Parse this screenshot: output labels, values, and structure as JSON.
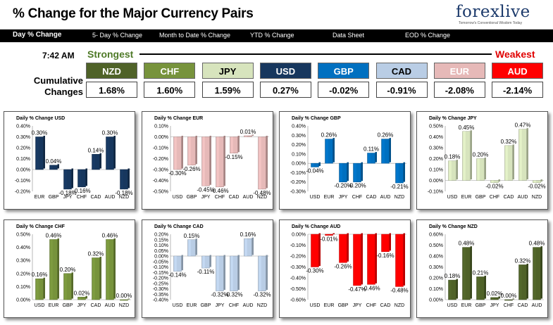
{
  "header": {
    "title": "% Change for the Major Currency Pairs",
    "logo": "forexlive",
    "logo_tagline": "Tomorrow's Conventional Wisdom Today"
  },
  "nav": {
    "items": [
      {
        "label": "Day % Change",
        "active": true
      },
      {
        "label": "5- Day % Change",
        "active": false
      },
      {
        "label": "Month to Date % Change",
        "active": false
      },
      {
        "label": "YTD % Change",
        "active": false
      },
      {
        "label": "Data Sheet",
        "active": false
      },
      {
        "label": "EOD % Change",
        "active": false
      }
    ]
  },
  "summary": {
    "time": "7:42 AM",
    "strongest": "Strongest",
    "weakest": "Weakest",
    "cumulative": "Cumulative Changes",
    "currencies": [
      {
        "name": "NZD",
        "value": "1.68%",
        "color": "#4f6228",
        "text_color": "#ffffff"
      },
      {
        "name": "CHF",
        "value": "1.60%",
        "color": "#77933c",
        "text_color": "#ffffff"
      },
      {
        "name": "JPY",
        "value": "1.59%",
        "color": "#d7e4bd",
        "text_color": "#000000"
      },
      {
        "name": "USD",
        "value": "0.27%",
        "color": "#17375e",
        "text_color": "#ffffff"
      },
      {
        "name": "GBP",
        "value": "-0.02%",
        "color": "#0070c0",
        "text_color": "#ffffff"
      },
      {
        "name": "CAD",
        "value": "-0.91%",
        "color": "#b9cde5",
        "text_color": "#000000"
      },
      {
        "name": "EUR",
        "value": "-2.08%",
        "color": "#e6b9b8",
        "text_color": "#ffffff"
      },
      {
        "name": "AUD",
        "value": "-2.14%",
        "color": "#ff0000",
        "text_color": "#ffffff"
      }
    ]
  },
  "chart_data": [
    {
      "type": "bar",
      "title": "Daily % Change USD",
      "color": "#17375e",
      "categories": [
        "EUR",
        "GBP",
        "JPY",
        "CHF",
        "CAD",
        "AUD",
        "NZD"
      ],
      "values": [
        0.3,
        0.04,
        -0.18,
        -0.16,
        0.14,
        0.3,
        -0.18
      ],
      "labels": [
        "0.30%",
        "0.04%",
        "-0.18%",
        "-0.16%",
        "0.14%",
        "0.30%",
        "-0.18%"
      ],
      "ylim": [
        -0.2,
        0.4
      ],
      "yticks": [
        "0.40%",
        "0.30%",
        "0.20%",
        "0.10%",
        "0.00%",
        "-0.10%",
        "-0.20%"
      ]
    },
    {
      "type": "bar",
      "title": "Daily % Change EUR",
      "color": "#e6b9b8",
      "categories": [
        "USD",
        "GBP",
        "JPY",
        "CHF",
        "CAD",
        "AUD",
        "NZD"
      ],
      "values": [
        -0.3,
        -0.26,
        -0.45,
        -0.46,
        -0.15,
        0.01,
        -0.48
      ],
      "labels": [
        "-0.30%",
        "-0.26%",
        "-0.45%",
        "-0.46%",
        "-0.15%",
        "0.01%",
        "-0.48%"
      ],
      "ylim": [
        -0.5,
        0.1
      ],
      "yticks": [
        "0.10%",
        "0.00%",
        "-0.10%",
        "-0.20%",
        "-0.30%",
        "-0.40%",
        "-0.50%"
      ]
    },
    {
      "type": "bar",
      "title": "Daily % Change GBP",
      "color": "#0070c0",
      "categories": [
        "USD",
        "EUR",
        "JPY",
        "CHF",
        "CAD",
        "AUD",
        "NZD"
      ],
      "values": [
        -0.04,
        0.26,
        -0.2,
        -0.2,
        0.11,
        0.26,
        -0.21
      ],
      "labels": [
        "-0.04%",
        "0.26%",
        "-0.20%",
        "-0.20%",
        "0.11%",
        "0.26%",
        "-0.21%"
      ],
      "ylim": [
        -0.3,
        0.4
      ],
      "yticks": [
        "0.40%",
        "0.30%",
        "0.20%",
        "0.10%",
        "0.00%",
        "-0.10%",
        "-0.20%",
        "-0.30%"
      ]
    },
    {
      "type": "bar",
      "title": "Daily % Change JPY",
      "color": "#d7e4bd",
      "categories": [
        "USD",
        "EUR",
        "GBP",
        "CHF",
        "CAD",
        "AUD",
        "NZD"
      ],
      "values": [
        0.18,
        0.45,
        0.2,
        -0.02,
        0.32,
        0.47,
        -0.02
      ],
      "labels": [
        "0.18%",
        "0.45%",
        "0.20%",
        "-0.02%",
        "0.32%",
        "0.47%",
        "-0.02%"
      ],
      "ylim": [
        -0.1,
        0.5
      ],
      "yticks": [
        "0.50%",
        "0.40%",
        "0.30%",
        "0.20%",
        "0.10%",
        "0.00%",
        "-0.10%"
      ]
    },
    {
      "type": "bar",
      "title": "Daily % Change CHF",
      "color": "#77933c",
      "categories": [
        "USD",
        "EUR",
        "GBP",
        "JPY",
        "CAD",
        "AUD",
        "NZD"
      ],
      "values": [
        0.16,
        0.46,
        0.2,
        0.02,
        0.32,
        0.46,
        0.0
      ],
      "labels": [
        "0.16%",
        "0.46%",
        "0.20%",
        "0.02%",
        "0.32%",
        "0.46%",
        "0.00%"
      ],
      "ylim": [
        0,
        0.5
      ],
      "yticks": [
        "0.50%",
        "0.40%",
        "0.30%",
        "0.20%",
        "0.10%",
        "0.00%"
      ]
    },
    {
      "type": "bar",
      "title": "Daily % Change CAD",
      "color": "#b9cde5",
      "categories": [
        "USD",
        "EUR",
        "GBP",
        "JPY",
        "CHF",
        "AUD",
        "NZD"
      ],
      "values": [
        -0.14,
        0.15,
        -0.11,
        -0.32,
        -0.32,
        0.16,
        -0.32
      ],
      "labels": [
        "-0.14%",
        "0.15%",
        "-0.11%",
        "-0.32%",
        "-0.32%",
        "0.16%",
        "-0.32%"
      ],
      "ylim": [
        -0.4,
        0.2
      ],
      "yticks": [
        "0.20%",
        "0.15%",
        "0.10%",
        "0.05%",
        "0.00%",
        "-0.05%",
        "-0.10%",
        "-0.15%",
        "-0.20%",
        "-0.25%",
        "-0.30%",
        "-0.35%",
        "-0.40%"
      ]
    },
    {
      "type": "bar",
      "title": "Daily % Change AUD",
      "color": "#ff0000",
      "categories": [
        "USD",
        "EUR",
        "GBP",
        "JPY",
        "CHF",
        "CAD",
        "NZD"
      ],
      "values": [
        -0.3,
        -0.01,
        -0.26,
        -0.47,
        -0.46,
        -0.16,
        -0.48
      ],
      "labels": [
        "-0.30%",
        "-0.01%",
        "-0.26%",
        "-0.47%",
        "-0.46%",
        "-0.16%",
        "-0.48%"
      ],
      "ylim": [
        -0.6,
        0
      ],
      "yticks": [
        "0.00%",
        "-0.10%",
        "-0.20%",
        "-0.30%",
        "-0.40%",
        "-0.50%",
        "-0.60%"
      ]
    },
    {
      "type": "bar",
      "title": "Daily % Change NZD",
      "color": "#4f6228",
      "categories": [
        "USD",
        "EUR",
        "GBP",
        "JPY",
        "CHF",
        "CAD",
        "AUD"
      ],
      "values": [
        0.18,
        0.48,
        0.21,
        0.02,
        0.0,
        0.32,
        0.48
      ],
      "labels": [
        "0.18%",
        "0.48%",
        "0.21%",
        "0.02%",
        "0.00%",
        "0.32%",
        "0.48%"
      ],
      "ylim": [
        0,
        0.6
      ],
      "yticks": [
        "0.60%",
        "0.50%",
        "0.40%",
        "0.30%",
        "0.20%",
        "0.10%",
        "0.00%"
      ]
    }
  ]
}
